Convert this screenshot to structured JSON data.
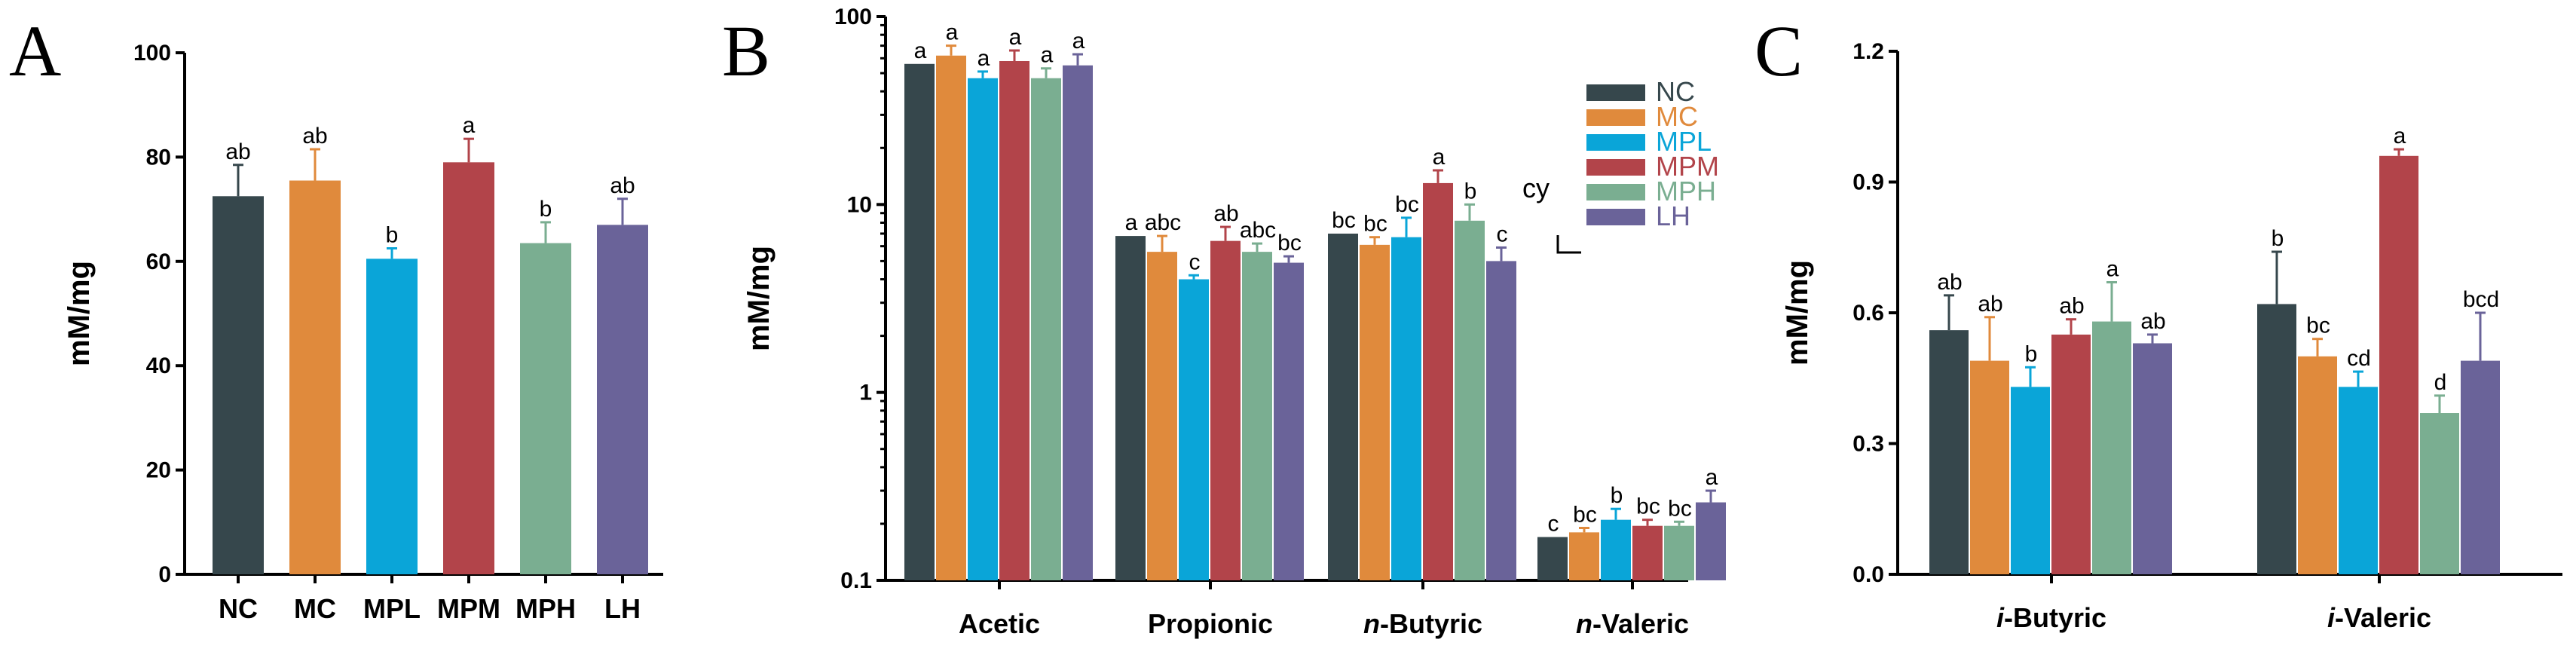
{
  "colors": {
    "NC": "#36474c",
    "MC": "#e08a3c",
    "MPL": "#0aa5d8",
    "MPM": "#b2444a",
    "MPH": "#7aae91",
    "LH": "#6a6399"
  },
  "chart_data": [
    {
      "panel": "A",
      "type": "bar",
      "ylabel": "mM/mg",
      "yscale": "linear",
      "ylim": [
        0,
        100
      ],
      "yticks": [
        0,
        20,
        40,
        60,
        80,
        100
      ],
      "categories": [
        "NC",
        "MC",
        "MPL",
        "MPM",
        "MPH",
        "LH"
      ],
      "values": [
        72.5,
        75.5,
        60.5,
        79.0,
        63.5,
        67.0
      ],
      "errors": [
        6.0,
        6.0,
        2.0,
        4.5,
        4.0,
        5.0
      ],
      "letters": [
        "ab",
        "ab",
        "b",
        "a",
        "b",
        "ab"
      ]
    },
    {
      "panel": "B",
      "type": "bar",
      "ylabel": "mM/mg",
      "yscale": "log",
      "ylim": [
        0.1,
        100
      ],
      "yticks": [
        0.1,
        1,
        10,
        100
      ],
      "ytick_labels": [
        "0.1",
        "1",
        "10",
        "100"
      ],
      "categories": [
        "Acetic",
        "Propionic",
        "n-Butyric",
        "n-Valeric"
      ],
      "category_parts": [
        {
          "prefix": "",
          "rest": "Acetic"
        },
        {
          "prefix": "",
          "rest": "Propionic"
        },
        {
          "prefix": "n",
          "rest": "-Butyric"
        },
        {
          "prefix": "n",
          "rest": "-Valeric"
        }
      ],
      "series": [
        {
          "name": "NC",
          "values": [
            56,
            6.8,
            7.0,
            0.17
          ],
          "errors": [
            0,
            0,
            0,
            0
          ],
          "letters": [
            "a",
            "a",
            "bc",
            "c"
          ]
        },
        {
          "name": "MC",
          "values": [
            62,
            5.6,
            6.1,
            0.18
          ],
          "errors": [
            8,
            1.2,
            0.6,
            0.01
          ],
          "letters": [
            "a",
            "abc",
            "bc",
            "bc"
          ]
        },
        {
          "name": "MPL",
          "values": [
            47,
            4.0,
            6.7,
            0.21
          ],
          "errors": [
            4,
            0.2,
            1.8,
            0.03
          ],
          "letters": [
            "a",
            "c",
            "bc",
            "b"
          ]
        },
        {
          "name": "MPM",
          "values": [
            58,
            6.4,
            13.0,
            0.195
          ],
          "errors": [
            8,
            1.2,
            2.2,
            0.015
          ],
          "letters": [
            "a",
            "ab",
            "a",
            "bc"
          ]
        },
        {
          "name": "MPH",
          "values": [
            47,
            5.6,
            8.2,
            0.195
          ],
          "errors": [
            6,
            0.6,
            1.8,
            0.01
          ],
          "letters": [
            "a",
            "abc",
            "b",
            "bc"
          ]
        },
        {
          "name": "LH",
          "values": [
            55,
            4.9,
            5.0,
            0.26
          ],
          "errors": [
            8,
            0.4,
            0.9,
            0.04
          ],
          "letters": [
            "a",
            "bc",
            "c",
            "a"
          ]
        }
      ],
      "legend": [
        "NC",
        "MC",
        "MPL",
        "MPM",
        "MPH",
        "LH"
      ],
      "stray_text": "cy"
    },
    {
      "panel": "C",
      "type": "bar",
      "ylabel": "mM/mg",
      "yscale": "linear",
      "ylim": [
        0,
        1.2
      ],
      "yticks": [
        0,
        0.3,
        0.6,
        0.9,
        1.2
      ],
      "ytick_labels": [
        "0.0",
        "0.3",
        "0.6",
        "0.9",
        "1.2"
      ],
      "categories": [
        "i-Butyric",
        "i-Valeric"
      ],
      "category_parts": [
        {
          "prefix": "i",
          "rest": "-Butyric"
        },
        {
          "prefix": "i",
          "rest": "-Valeric"
        }
      ],
      "series": [
        {
          "name": "NC",
          "values": [
            0.56,
            0.62
          ],
          "errors": [
            0.08,
            0.12
          ],
          "letters": [
            "ab",
            "b"
          ]
        },
        {
          "name": "MC",
          "values": [
            0.49,
            0.5
          ],
          "errors": [
            0.1,
            0.04
          ],
          "letters": [
            "ab",
            "bc"
          ]
        },
        {
          "name": "MPL",
          "values": [
            0.43,
            0.43
          ],
          "errors": [
            0.045,
            0.035
          ],
          "letters": [
            "b",
            "cd"
          ]
        },
        {
          "name": "MPM",
          "values": [
            0.55,
            0.96
          ],
          "errors": [
            0.035,
            0.015
          ],
          "letters": [
            "ab",
            "a"
          ]
        },
        {
          "name": "MPH",
          "values": [
            0.58,
            0.37
          ],
          "errors": [
            0.09,
            0.04
          ],
          "letters": [
            "a",
            "d"
          ]
        },
        {
          "name": "LH",
          "values": [
            0.53,
            0.49
          ],
          "errors": [
            0.02,
            0.11
          ],
          "letters": [
            "ab",
            "bcd"
          ]
        }
      ]
    }
  ]
}
